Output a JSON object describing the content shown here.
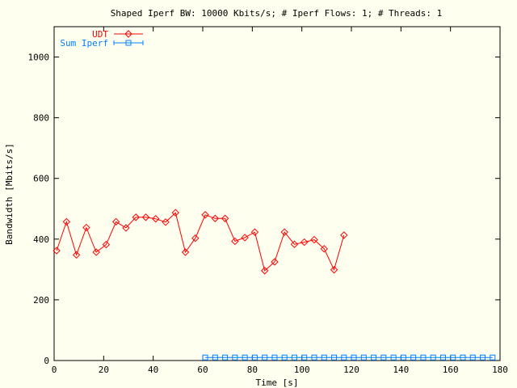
{
  "chart_data": {
    "type": "line",
    "title": "Shaped Iperf BW: 10000 Kbits/s; # Iperf Flows: 1; # Threads: 1",
    "xlabel": "Time [s]",
    "ylabel": "Bandwidth [Mbits/s]",
    "xlim": [
      0,
      180
    ],
    "ylim": [
      0,
      1100
    ],
    "xticks": [
      0,
      20,
      40,
      60,
      80,
      100,
      120,
      140,
      160,
      180
    ],
    "yticks": [
      0,
      200,
      400,
      600,
      800,
      1000
    ],
    "grid": false,
    "legend_position": "top-left",
    "series": [
      {
        "name": "UDT",
        "color": "#ff0000",
        "marker": "diamond",
        "x": [
          1,
          5,
          9,
          13,
          17,
          21,
          25,
          29,
          33,
          37,
          41,
          45,
          49,
          53,
          57,
          61,
          65,
          69,
          73,
          77,
          81,
          85,
          89,
          93,
          97,
          101,
          105,
          109,
          113,
          117
        ],
        "y": [
          362,
          457,
          348,
          438,
          357,
          382,
          457,
          437,
          472,
          472,
          467,
          456,
          487,
          357,
          403,
          480,
          468,
          468,
          393,
          405,
          423,
          296,
          325,
          423,
          383,
          390,
          398,
          368,
          299,
          413
        ]
      },
      {
        "name": "Sum Iperf",
        "color": "#0080ff",
        "marker": "square-errorbar",
        "x": [
          61,
          65,
          69,
          73,
          77,
          81,
          85,
          89,
          93,
          97,
          101,
          105,
          109,
          113,
          117,
          121,
          125,
          129,
          133,
          137,
          141,
          145,
          149,
          153,
          157,
          161,
          165,
          169,
          173,
          177
        ],
        "y": [
          10,
          10,
          10,
          10,
          10,
          10,
          10,
          10,
          10,
          10,
          10,
          10,
          10,
          10,
          10,
          10,
          10,
          10,
          10,
          10,
          10,
          10,
          10,
          10,
          10,
          10,
          10,
          10,
          10,
          10
        ]
      }
    ]
  }
}
